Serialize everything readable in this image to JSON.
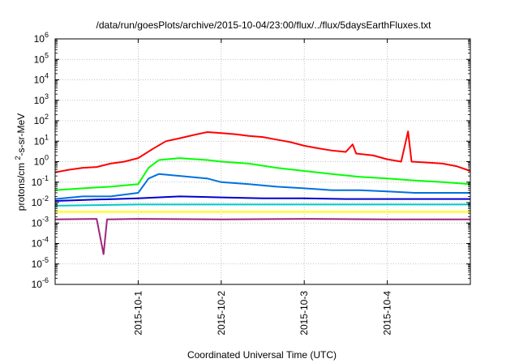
{
  "chart_data": {
    "type": "line",
    "title": "/data/run/goesPlots/archive/2015-10-04/23:00/flux/../flux/5daysEarthFluxes.txt",
    "xlabel": "Coordinated Universal Time (UTC)",
    "ylabel": "protons/cm²-s-sr-MeV",
    "y_scale": "log",
    "ylim": [
      1e-06,
      1000000.0
    ],
    "y_ticks": [
      {
        "value": 1e-06,
        "base": "10",
        "exp": "-6"
      },
      {
        "value": 1e-05,
        "base": "10",
        "exp": "-5"
      },
      {
        "value": 0.0001,
        "base": "10",
        "exp": "-4"
      },
      {
        "value": 0.001,
        "base": "10",
        "exp": "-3"
      },
      {
        "value": 0.01,
        "base": "10",
        "exp": "-2"
      },
      {
        "value": 0.1,
        "base": "10",
        "exp": "-1"
      },
      {
        "value": 1,
        "base": "10",
        "exp": "0"
      },
      {
        "value": 10,
        "base": "10",
        "exp": "1"
      },
      {
        "value": 100,
        "base": "10",
        "exp": "2"
      },
      {
        "value": 1000,
        "base": "10",
        "exp": "3"
      },
      {
        "value": 10000,
        "base": "10",
        "exp": "4"
      },
      {
        "value": 100000,
        "base": "10",
        "exp": "5"
      },
      {
        "value": 1000000,
        "base": "10",
        "exp": "6"
      }
    ],
    "x_range": [
      "2015-09-30T00:00",
      "2015-10-05T00:00"
    ],
    "x_ticks": [
      "2015-10-1",
      "2015-10-2",
      "2015-10-3",
      "2015-10-4"
    ],
    "grid": true,
    "series": [
      {
        "color": "#ff0000",
        "points": [
          [
            "2015-09-30T00:00",
            0.3
          ],
          [
            "2015-09-30T04:00",
            0.4
          ],
          [
            "2015-09-30T08:00",
            0.5
          ],
          [
            "2015-09-30T12:00",
            0.55
          ],
          [
            "2015-09-30T16:00",
            0.8
          ],
          [
            "2015-09-30T20:00",
            1.0
          ],
          [
            "2015-10-01T00:00",
            1.5
          ],
          [
            "2015-10-01T04:00",
            4
          ],
          [
            "2015-10-01T08:00",
            10
          ],
          [
            "2015-10-01T12:00",
            14
          ],
          [
            "2015-10-01T16:00",
            20
          ],
          [
            "2015-10-01T20:00",
            28
          ],
          [
            "2015-10-02T00:00",
            25
          ],
          [
            "2015-10-02T04:00",
            22
          ],
          [
            "2015-10-02T08:00",
            18
          ],
          [
            "2015-10-02T12:00",
            16
          ],
          [
            "2015-10-02T16:00",
            12
          ],
          [
            "2015-10-02T20:00",
            9
          ],
          [
            "2015-10-03T00:00",
            6
          ],
          [
            "2015-10-03T04:00",
            4.5
          ],
          [
            "2015-10-03T08:00",
            3.5
          ],
          [
            "2015-10-03T12:00",
            3
          ],
          [
            "2015-10-03T14:00",
            7
          ],
          [
            "2015-10-03T15:00",
            2.5
          ],
          [
            "2015-10-03T20:00",
            2
          ],
          [
            "2015-10-04T00:00",
            1.3
          ],
          [
            "2015-10-04T04:00",
            1.0
          ],
          [
            "2015-10-04T06:00",
            30
          ],
          [
            "2015-10-04T07:00",
            1.0
          ],
          [
            "2015-10-04T12:00",
            0.9
          ],
          [
            "2015-10-04T16:00",
            0.8
          ],
          [
            "2015-10-04T20:00",
            0.6
          ],
          [
            "2015-10-05T00:00",
            0.35
          ]
        ]
      },
      {
        "color": "#00ff00",
        "points": [
          [
            "2015-09-30T00:00",
            0.04
          ],
          [
            "2015-09-30T08:00",
            0.05
          ],
          [
            "2015-09-30T16:00",
            0.06
          ],
          [
            "2015-10-01T00:00",
            0.08
          ],
          [
            "2015-10-01T03:00",
            0.5
          ],
          [
            "2015-10-01T06:00",
            1.2
          ],
          [
            "2015-10-01T12:00",
            1.5
          ],
          [
            "2015-10-01T20:00",
            1.2
          ],
          [
            "2015-10-02T00:00",
            1.0
          ],
          [
            "2015-10-02T08:00",
            0.8
          ],
          [
            "2015-10-02T16:00",
            0.5
          ],
          [
            "2015-10-03T00:00",
            0.35
          ],
          [
            "2015-10-03T08:00",
            0.25
          ],
          [
            "2015-10-03T16:00",
            0.18
          ],
          [
            "2015-10-04T00:00",
            0.15
          ],
          [
            "2015-10-04T08:00",
            0.12
          ],
          [
            "2015-10-04T16:00",
            0.1
          ],
          [
            "2015-10-05T00:00",
            0.08
          ]
        ]
      },
      {
        "color": "#0070e0",
        "points": [
          [
            "2015-09-30T00:00",
            0.015
          ],
          [
            "2015-09-30T08:00",
            0.02
          ],
          [
            "2015-09-30T16:00",
            0.02
          ],
          [
            "2015-10-01T00:00",
            0.03
          ],
          [
            "2015-10-01T03:00",
            0.15
          ],
          [
            "2015-10-01T06:00",
            0.25
          ],
          [
            "2015-10-01T12:00",
            0.2
          ],
          [
            "2015-10-01T20:00",
            0.15
          ],
          [
            "2015-10-02T00:00",
            0.1
          ],
          [
            "2015-10-02T08:00",
            0.08
          ],
          [
            "2015-10-02T16:00",
            0.06
          ],
          [
            "2015-10-03T00:00",
            0.05
          ],
          [
            "2015-10-03T08:00",
            0.04
          ],
          [
            "2015-10-03T16:00",
            0.04
          ],
          [
            "2015-10-04T00:00",
            0.035
          ],
          [
            "2015-10-04T08:00",
            0.03
          ],
          [
            "2015-10-04T16:00",
            0.03
          ],
          [
            "2015-10-05T00:00",
            0.03
          ]
        ]
      },
      {
        "color": "#0000cd",
        "points": [
          [
            "2015-09-30T00:00",
            0.012
          ],
          [
            "2015-09-30T12:00",
            0.014
          ],
          [
            "2015-10-01T00:00",
            0.016
          ],
          [
            "2015-10-01T12:00",
            0.02
          ],
          [
            "2015-10-02T00:00",
            0.018
          ],
          [
            "2015-10-02T12:00",
            0.016
          ],
          [
            "2015-10-03T00:00",
            0.016
          ],
          [
            "2015-10-03T12:00",
            0.015
          ],
          [
            "2015-10-04T00:00",
            0.015
          ],
          [
            "2015-10-04T12:00",
            0.015
          ],
          [
            "2015-10-05T00:00",
            0.015
          ]
        ]
      },
      {
        "color": "#00c8c8",
        "points": [
          [
            "2015-09-30T00:00",
            0.007
          ],
          [
            "2015-10-01T00:00",
            0.008
          ],
          [
            "2015-10-02T00:00",
            0.008
          ],
          [
            "2015-10-03T00:00",
            0.008
          ],
          [
            "2015-10-04T00:00",
            0.008
          ],
          [
            "2015-10-05T00:00",
            0.008
          ]
        ]
      },
      {
        "color": "#ffff00",
        "points": [
          [
            "2015-09-30T00:00",
            0.0035
          ],
          [
            "2015-10-01T00:00",
            0.0035
          ],
          [
            "2015-10-02T00:00",
            0.0035
          ],
          [
            "2015-10-03T00:00",
            0.0035
          ],
          [
            "2015-10-04T00:00",
            0.0035
          ],
          [
            "2015-10-05T00:00",
            0.0035
          ]
        ]
      },
      {
        "color": "#9b2778",
        "points": [
          [
            "2015-09-30T00:00",
            0.0015
          ],
          [
            "2015-09-30T12:00",
            0.0016
          ],
          [
            "2015-09-30T14:00",
            3e-05
          ],
          [
            "2015-09-30T15:00",
            0.0015
          ],
          [
            "2015-10-01T00:00",
            0.0016
          ],
          [
            "2015-10-02T00:00",
            0.0015
          ],
          [
            "2015-10-03T00:00",
            0.0016
          ],
          [
            "2015-10-04T00:00",
            0.0015
          ],
          [
            "2015-10-05T00:00",
            0.0015
          ]
        ]
      }
    ]
  }
}
